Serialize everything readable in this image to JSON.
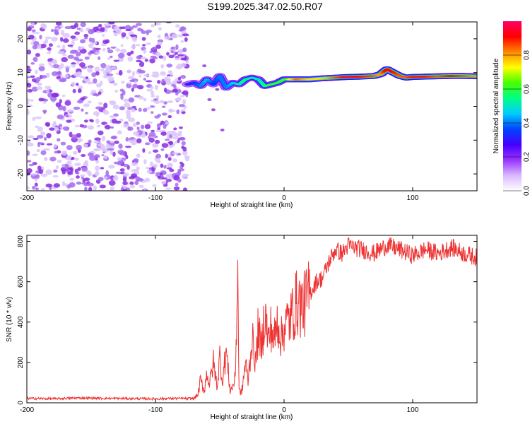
{
  "figure_title": "S199.2025.347.02.50.R07",
  "chart_data": [
    {
      "type": "heatmap",
      "title": "S199.2025.347.02.50.R07",
      "xlabel": "Height of straight line (km)",
      "ylabel": "Frequency (Hz)",
      "xlim": [
        -200,
        150
      ],
      "ylim": [
        -25,
        25
      ],
      "xticks": [
        -200,
        -100,
        0,
        100
      ],
      "yticks": [
        -20,
        -10,
        0,
        10,
        20
      ],
      "colorbar": {
        "label": "Normalized spectral amplitude",
        "range": [
          0,
          1
        ],
        "ticks": [
          0.0,
          0.2,
          0.4,
          0.6,
          0.8
        ],
        "colormap": [
          "#ffffff",
          "#d9b8ff",
          "#9933ff",
          "#4400ff",
          "#0044ff",
          "#00ccff",
          "#00ff88",
          "#44ff00",
          "#ffff00",
          "#ff8800",
          "#ff0000",
          "#ff0066"
        ]
      },
      "noise_region_x": [
        -200,
        -75
      ],
      "ridge": {
        "x": [
          -75,
          -70,
          -65,
          -60,
          -55,
          -50,
          -45,
          -40,
          -35,
          -30,
          -25,
          -20,
          -15,
          -10,
          -5,
          0,
          10,
          20,
          30,
          40,
          50,
          60,
          70,
          75,
          80,
          85,
          90,
          95,
          100,
          110,
          120,
          130,
          140,
          150
        ],
        "freq": [
          6.5,
          7.0,
          6.0,
          8.0,
          6.5,
          9.0,
          5.5,
          7.0,
          6.5,
          8.0,
          8.5,
          8.0,
          6.0,
          6.5,
          7.0,
          8.0,
          8.0,
          8.0,
          8.3,
          8.5,
          8.7,
          8.8,
          9.0,
          9.5,
          11.0,
          10.0,
          9.0,
          8.5,
          8.7,
          8.8,
          8.9,
          9.0,
          9.0,
          8.9
        ],
        "amplitude": [
          0.3,
          0.35,
          0.4,
          0.45,
          0.35,
          0.4,
          0.4,
          0.45,
          0.5,
          0.55,
          0.5,
          0.5,
          0.55,
          0.6,
          0.6,
          0.6,
          0.85,
          0.75,
          0.75,
          0.85,
          0.95,
          0.9,
          0.85,
          0.8,
          0.95,
          0.9,
          0.85,
          0.85,
          0.9,
          0.9,
          0.85,
          0.9,
          0.85,
          0.8
        ]
      }
    },
    {
      "type": "line",
      "xlabel": "Height of straight line (km)",
      "ylabel": "SNR (10 * v/v)",
      "xlim": [
        -200,
        150
      ],
      "ylim": [
        0,
        830
      ],
      "xticks": [
        -200,
        -100,
        0,
        100
      ],
      "yticks": [
        0,
        200,
        400,
        600,
        800
      ],
      "series": [
        {
          "name": "SNR",
          "color": "#ee3333",
          "x": [
            -200,
            -180,
            -160,
            -140,
            -120,
            -100,
            -90,
            -80,
            -75,
            -70,
            -67,
            -65,
            -62,
            -60,
            -58,
            -55,
            -52,
            -50,
            -48,
            -45,
            -42,
            -40,
            -38,
            -36,
            -35,
            -33,
            -30,
            -28,
            -25,
            -22,
            -20,
            -18,
            -15,
            -12,
            -10,
            -8,
            -5,
            -2,
            0,
            5,
            10,
            15,
            20,
            25,
            30,
            35,
            40,
            45,
            50,
            60,
            70,
            80,
            90,
            100,
            110,
            120,
            130,
            140,
            150
          ],
          "y": [
            22,
            20,
            24,
            22,
            21,
            20,
            21,
            22,
            20,
            22,
            40,
            110,
            60,
            150,
            90,
            200,
            80,
            230,
            110,
            260,
            60,
            80,
            120,
            660,
            60,
            50,
            200,
            110,
            320,
            200,
            380,
            250,
            450,
            300,
            380,
            300,
            410,
            320,
            380,
            420,
            500,
            480,
            540,
            600,
            620,
            700,
            760,
            740,
            780,
            760,
            740,
            780,
            760,
            730,
            760,
            740,
            770,
            740,
            720
          ]
        }
      ]
    }
  ]
}
